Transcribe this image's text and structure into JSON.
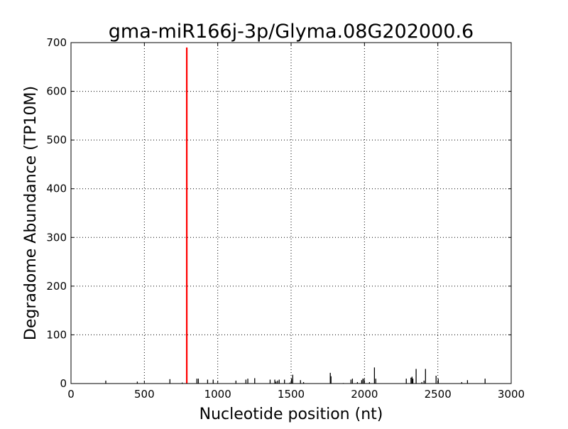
{
  "chart_data": {
    "type": "bar",
    "title": "gma-miR166j-3p/Glyma.08G202000.6",
    "xlabel": "Nucleotide position (nt)",
    "ylabel": "Degradome Abundance (TP10M)",
    "xlim": [
      0,
      3000
    ],
    "ylim": [
      0,
      700
    ],
    "xticks": [
      0,
      500,
      1000,
      1500,
      2000,
      2500,
      3000
    ],
    "yticks": [
      0,
      100,
      200,
      300,
      400,
      500,
      600,
      700
    ],
    "grid": true,
    "colors": {
      "background": "#ffffff",
      "bars": "#000000",
      "highlight": "#ff0000"
    },
    "highlight": {
      "x": 789,
      "y": 690
    },
    "x": [
      237,
      452,
      674,
      758,
      858,
      868,
      931,
      969,
      1124,
      1192,
      1205,
      1252,
      1357,
      1389,
      1397,
      1408,
      1419,
      1455,
      1492,
      1503,
      1511,
      1564,
      1585,
      1767,
      1772,
      1856,
      1908,
      1918,
      1952,
      1981,
      1989,
      1998,
      2034,
      2068,
      2077,
      2285,
      2317,
      2324,
      2330,
      2352,
      2391,
      2406,
      2416,
      2488,
      2503,
      2663,
      2702,
      2822
    ],
    "values": [
      6,
      4,
      9,
      2,
      10,
      10,
      8,
      8,
      6,
      8,
      10,
      11,
      8,
      8,
      4,
      6,
      8,
      8,
      2,
      10,
      18,
      7,
      3,
      22,
      15,
      1,
      8,
      10,
      3,
      7,
      10,
      10,
      3,
      33,
      10,
      10,
      12,
      14,
      10,
      30,
      3,
      6,
      30,
      16,
      10,
      3,
      7,
      10
    ]
  }
}
